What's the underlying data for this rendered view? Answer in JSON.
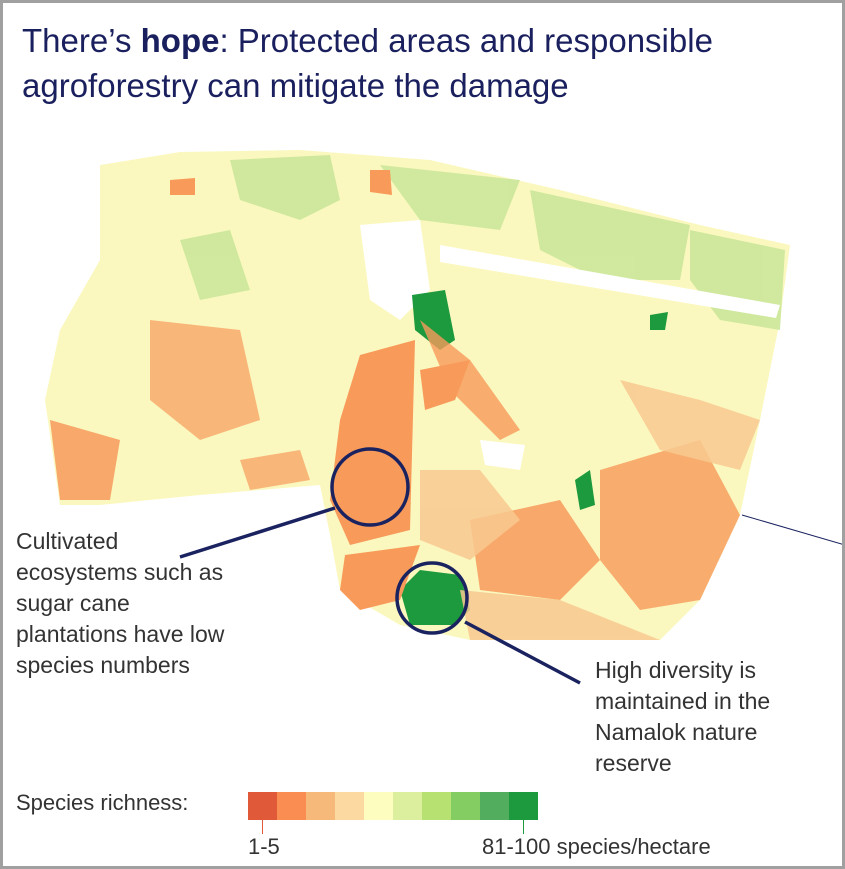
{
  "title": {
    "prefix": "There’s ",
    "bold": "hope",
    "rest": ": Protected areas and responsible agroforestry can mitigate the damage"
  },
  "annotations": {
    "cultivated": "Cultivated ecosystems such as sugar cane plantations have low species numbers",
    "reserve": "High diversity is maintained in the Namalok nature reserve"
  },
  "legend": {
    "label": "Species richness:",
    "low": "1-5",
    "high": "81-100 species/hectare",
    "colors": [
      "#e05a3a",
      "#f98d52",
      "#f6b97a",
      "#fcd9a0",
      "#fefdc0",
      "#dcef9f",
      "#b7e271",
      "#84cd62",
      "#52ad5e",
      "#1d9a3e"
    ]
  },
  "colors": {
    "title": "#1a1f5e",
    "callout": "#1a2360",
    "base": "#fdfbc4"
  }
}
